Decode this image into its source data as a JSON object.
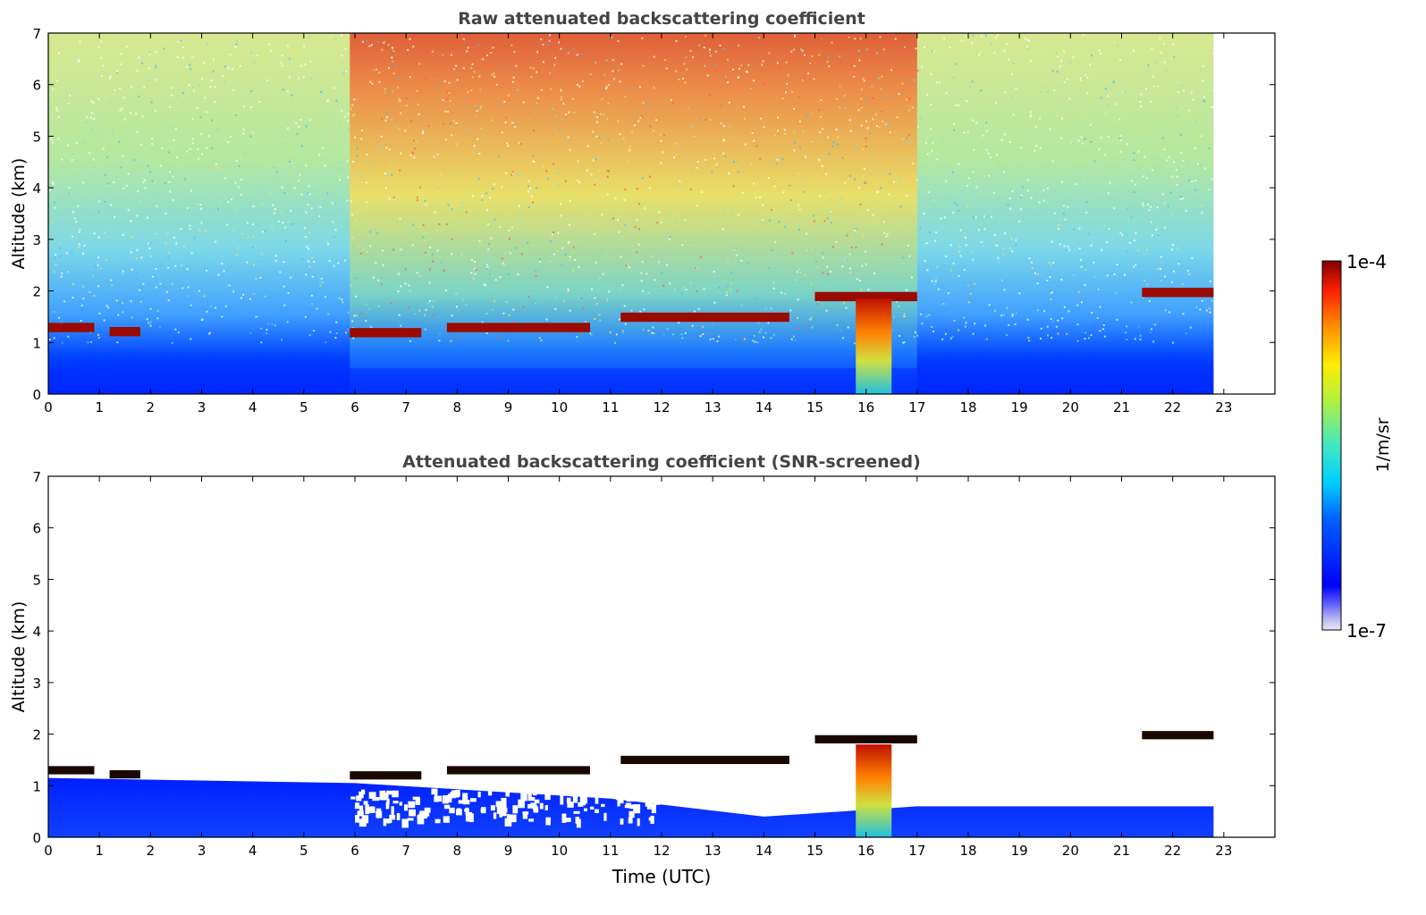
{
  "chart_data": [
    {
      "type": "heatmap",
      "title": "Raw attenuated backscattering coefficient",
      "xlabel": "",
      "ylabel": "Altitude (km)",
      "xlim": [
        0,
        24
      ],
      "ylim": [
        0,
        7
      ],
      "x_ticks": [
        "0",
        "1",
        "2",
        "3",
        "4",
        "5",
        "6",
        "7",
        "8",
        "9",
        "10",
        "11",
        "12",
        "13",
        "14",
        "15",
        "16",
        "17",
        "18",
        "19",
        "20",
        "21",
        "22",
        "23"
      ],
      "y_ticks": [
        "0",
        "1",
        "2",
        "3",
        "4",
        "5",
        "6",
        "7"
      ],
      "data_end_time": 22.8,
      "grid": false,
      "cloud_layer": [
        {
          "time_start": 0.0,
          "time_end": 0.9,
          "altitude_km": 1.3
        },
        {
          "time_start": 1.2,
          "time_end": 1.8,
          "altitude_km": 1.22
        },
        {
          "time_start": 5.9,
          "time_end": 7.3,
          "altitude_km": 1.2
        },
        {
          "time_start": 7.8,
          "time_end": 10.6,
          "altitude_km": 1.3
        },
        {
          "time_start": 11.2,
          "time_end": 14.5,
          "altitude_km": 1.5
        },
        {
          "time_start": 15.0,
          "time_end": 17.0,
          "altitude_km": 1.9
        },
        {
          "time_start": 21.4,
          "time_end": 22.8,
          "altitude_km": 1.98
        }
      ],
      "precipitation": {
        "time_start": 15.8,
        "time_end": 16.5,
        "altitude_top_km": 1.85
      }
    },
    {
      "type": "heatmap",
      "title": "Attenuated backscattering coefficient (SNR-screened)",
      "xlabel": "Time (UTC)",
      "ylabel": "Altitude (km)",
      "xlim": [
        0,
        24
      ],
      "ylim": [
        0,
        7
      ],
      "x_ticks": [
        "0",
        "1",
        "2",
        "3",
        "4",
        "5",
        "6",
        "7",
        "8",
        "9",
        "10",
        "11",
        "12",
        "13",
        "14",
        "15",
        "16",
        "17",
        "18",
        "19",
        "20",
        "21",
        "22",
        "23"
      ],
      "y_ticks": [
        "0",
        "1",
        "2",
        "3",
        "4",
        "5",
        "6",
        "7"
      ],
      "data_end_time": 22.8,
      "grid": false,
      "boundary_layer_top_km": [
        {
          "time": 0,
          "altitude_km": 1.15
        },
        {
          "time": 6,
          "altitude_km": 1.05
        },
        {
          "time": 11,
          "altitude_km": 0.75
        },
        {
          "time": 14,
          "altitude_km": 0.4
        },
        {
          "time": 17,
          "altitude_km": 0.6
        },
        {
          "time": 22.8,
          "altitude_km": 0.6
        }
      ]
    }
  ],
  "colorbar": {
    "max_label": "1e-4",
    "min_label": "1e-7",
    "unit_label": "1/m/sr",
    "colormap": "jet"
  }
}
